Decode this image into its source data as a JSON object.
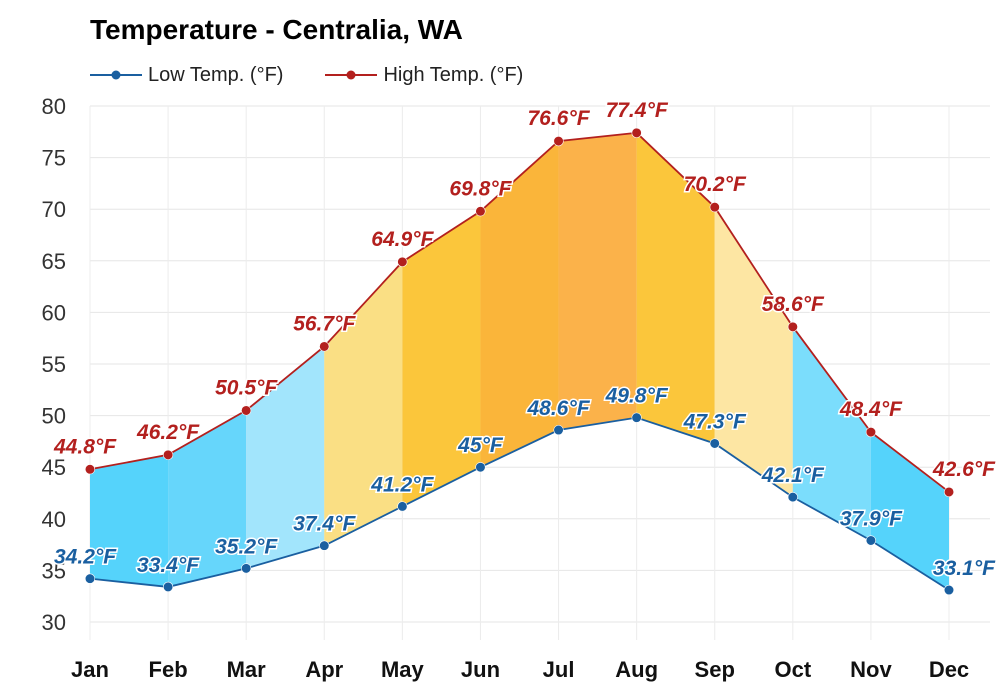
{
  "chart_data": {
    "type": "area",
    "title": "Temperature - Centralia, WA",
    "categories": [
      "Jan",
      "Feb",
      "Mar",
      "Apr",
      "May",
      "Jun",
      "Jul",
      "Aug",
      "Sep",
      "Oct",
      "Nov",
      "Dec"
    ],
    "series": [
      {
        "name": "Low Temp. (°F)",
        "color": "#1a5fa0",
        "values": [
          34.2,
          33.4,
          35.2,
          37.4,
          41.2,
          45,
          48.6,
          49.8,
          47.3,
          42.1,
          37.9,
          33.1
        ],
        "labels": [
          "34.2°F",
          "33.4°F",
          "35.2°F",
          "37.4°F",
          "41.2°F",
          "45°F",
          "48.6°F",
          "49.8°F",
          "47.3°F",
          "42.1°F",
          "37.9°F",
          "33.1°F"
        ]
      },
      {
        "name": "High Temp. (°F)",
        "color": "#b3201e",
        "values": [
          44.8,
          46.2,
          50.5,
          56.7,
          64.9,
          69.8,
          76.6,
          77.4,
          70.2,
          58.6,
          48.4,
          42.6
        ],
        "labels": [
          "44.8°F",
          "46.2°F",
          "50.5°F",
          "56.7°F",
          "64.9°F",
          "69.8°F",
          "76.6°F",
          "77.4°F",
          "70.2°F",
          "58.6°F",
          "48.4°F",
          "42.6°F"
        ]
      }
    ],
    "band_colors": [
      "#55d3fb",
      "#66d6fb",
      "#a2e5fc",
      "#fadf84",
      "#fbc63b",
      "#fab53a",
      "#fbb24a",
      "#fbc63b",
      "#fde6a3",
      "#7bddfc",
      "#55d3fb"
    ],
    "ylim": [
      30,
      80
    ],
    "yticks": [
      30,
      35,
      40,
      45,
      50,
      55,
      60,
      65,
      70,
      75,
      80
    ],
    "ytick_labels": [
      "30",
      "35",
      "40",
      "45",
      "50",
      "55",
      "60",
      "65",
      "70",
      "75",
      "80"
    ],
    "xlabel": "",
    "ylabel": "",
    "grid": true,
    "legend_position": "top-left"
  }
}
